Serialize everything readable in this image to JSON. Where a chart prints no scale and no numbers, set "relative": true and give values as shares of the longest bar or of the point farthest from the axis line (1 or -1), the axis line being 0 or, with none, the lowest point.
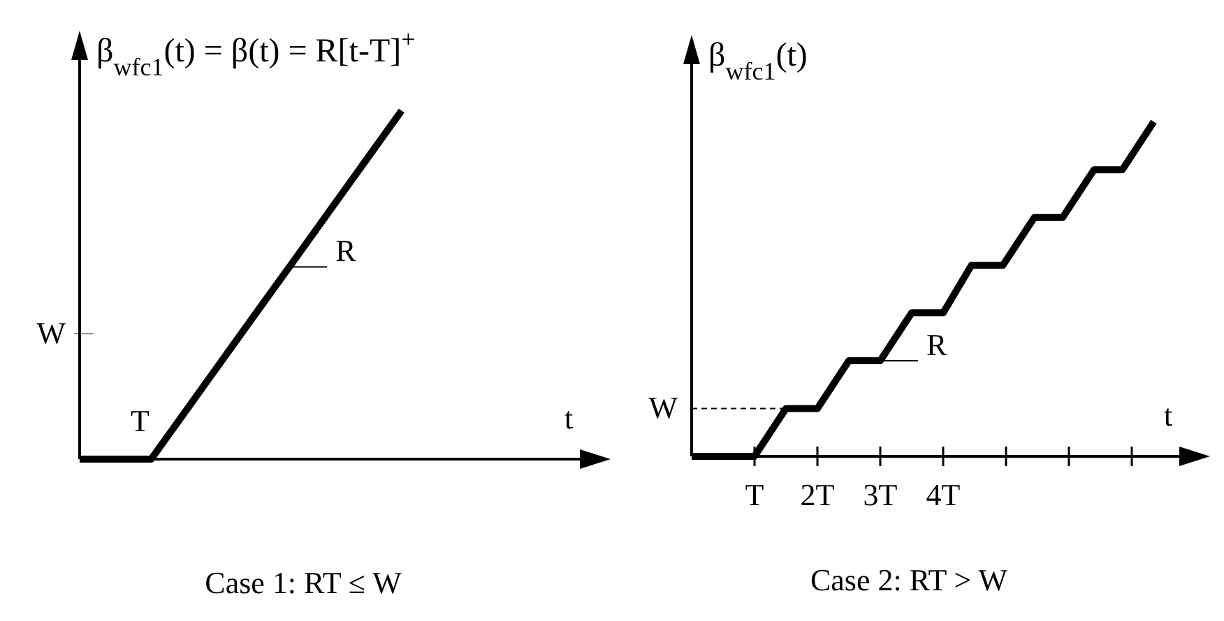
{
  "chart_data": [
    {
      "type": "line",
      "title": "Case 1: RT ≤ W",
      "ylabel": "β$_{wfc1}$(t) = β(t) = R[t-T]$^{+}$",
      "xlabel": "t",
      "relative": true,
      "categories": [
        null,
        null,
        null,
        null,
        null,
        null,
        null,
        null,
        null,
        null
      ],
      "series": [
        {
          "color": "#000000",
          "values": [
            0,
            0,
            0,
            0.143,
            0.286,
            0.429,
            0.571,
            0.714,
            0.857,
            1
          ]
        }
      ],
      "ref_lines": [
        {
          "axis": "y",
          "value": 0.36,
          "label": "W",
          "color": "#888888",
          "line_style": "solid"
        }
      ],
      "annotations": [
        {
          "text": "T",
          "y": 0
        },
        "R"
      ],
      "marker": "none",
      "line_style": "solid"
    },
    {
      "type": "line",
      "title": "Case 2: RT > W",
      "ylabel": "β$_{wfc1}$(t)",
      "xlabel": "t",
      "relative": true,
      "series": [
        {
          "color": "#000000",
          "x": [
            0,
            1,
            1.5,
            2,
            2.5,
            3,
            3.5,
            4,
            4.45,
            4.95,
            5.45,
            5.9,
            6.4,
            6.85,
            7.35
          ],
          "values": [
            0,
            0,
            0.143,
            0.143,
            0.286,
            0.286,
            0.429,
            0.429,
            0.571,
            0.571,
            0.714,
            0.714,
            0.857,
            0.857,
            1
          ]
        }
      ],
      "xlim": [
        0,
        7.8
      ],
      "xticks": [
        {
          "value": 1,
          "label": "T"
        },
        {
          "value": 2,
          "label": "2T"
        },
        {
          "value": 3,
          "label": "3T"
        },
        {
          "value": 4,
          "label": "4T"
        },
        {
          "value": 5,
          "label": null
        },
        {
          "value": 6,
          "label": null
        },
        {
          "value": 7,
          "label": null
        }
      ],
      "ref_lines": [
        {
          "axis": "y",
          "value": 0.143,
          "label": "W",
          "color": "#000000",
          "line_style": "dashed"
        }
      ],
      "annotations": [
        {
          "text": "R",
          "x": 3.0,
          "y": 0.286
        }
      ],
      "marker": "none",
      "line_style": "solid"
    }
  ]
}
